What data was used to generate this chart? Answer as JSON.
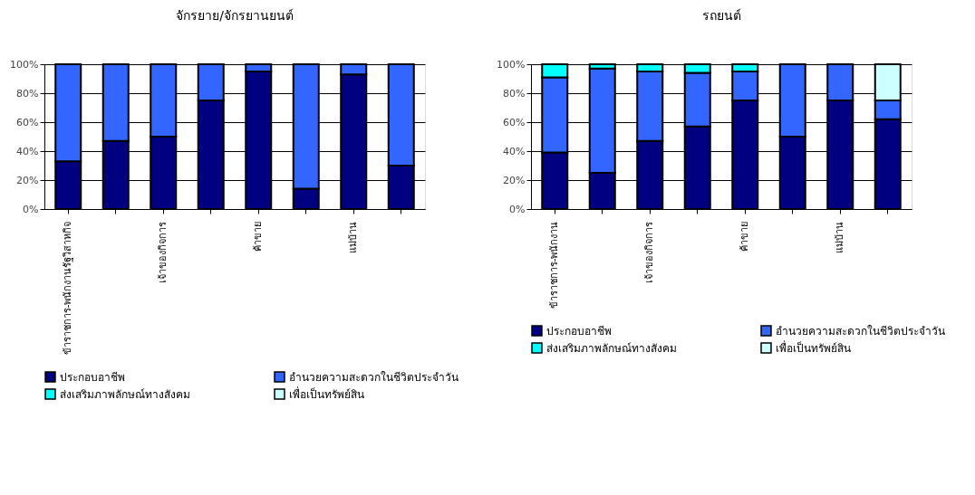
{
  "chart_data": [
    {
      "type": "bar",
      "title": "จักรยาย/จักรยานยนต์",
      "stacked": true,
      "grid": "y",
      "legend": "bottom",
      "categories": [
        "ข้าราชการ-พนักงานรัฐวิสาหกิจ",
        null,
        "เจ้าของกิจการ",
        null,
        "ค้าขาย",
        null,
        "แม่บ้าน",
        null
      ],
      "series": [
        {
          "name": "ประกอบอาชีพ",
          "color": "#000080",
          "values": [
            33,
            47,
            50,
            75,
            95,
            14,
            93,
            30
          ]
        },
        {
          "name": "อำนวยความสะดวกในชีวิตประจำวัน",
          "color": "#3366ff",
          "values": [
            67,
            53,
            50,
            25,
            5,
            86,
            7,
            70
          ]
        },
        {
          "name": "ส่งเสริมภาพลักษณ์ทางสังคม",
          "color": "#00ffff",
          "values": [
            0,
            0,
            0,
            0,
            0,
            0,
            0,
            0
          ]
        },
        {
          "name": "เพื่อเป็นทรัพย์สิน",
          "color": "#ccffff",
          "values": [
            0,
            0,
            0,
            0,
            0,
            0,
            0,
            0
          ]
        }
      ],
      "ylim": [
        0,
        100
      ],
      "yticks": [
        {
          "value": 0,
          "label": "0%"
        },
        {
          "value": 20,
          "label": "20%"
        },
        {
          "value": 40,
          "label": "40%"
        },
        {
          "value": 60,
          "label": "60%"
        },
        {
          "value": 80,
          "label": "80%"
        },
        {
          "value": 100,
          "label": "100%"
        }
      ]
    },
    {
      "type": "bar",
      "title": "รถยนต์",
      "stacked": true,
      "grid": "y",
      "legend": "bottom",
      "categories": [
        "ข้าราชการ-พนักงาน",
        null,
        "เจ้าของกิจการ",
        null,
        "ค้าขาย",
        null,
        "แม่บ้าน",
        null
      ],
      "series": [
        {
          "name": "ประกอบอาชีพ",
          "color": "#000080",
          "values": [
            39,
            25,
            47,
            57,
            75,
            50,
            75,
            62
          ]
        },
        {
          "name": "อำนวยความสะดวกในชีวิตประจำวัน",
          "color": "#3366ff",
          "values": [
            52,
            72,
            48,
            37,
            20,
            50,
            25,
            13
          ]
        },
        {
          "name": "ส่งเสริมภาพลักษณ์ทางสังคม",
          "color": "#00ffff",
          "values": [
            9,
            3,
            5,
            6,
            5,
            0,
            0,
            0
          ]
        },
        {
          "name": "เพื่อเป็นทรัพย์สิน",
          "color": "#ccffff",
          "values": [
            0,
            0,
            0,
            0,
            0,
            0,
            0,
            25
          ]
        }
      ],
      "ylim": [
        0,
        100
      ],
      "yticks": [
        {
          "value": 0,
          "label": "0%"
        },
        {
          "value": 20,
          "label": "20%"
        },
        {
          "value": 40,
          "label": "40%"
        },
        {
          "value": 60,
          "label": "60%"
        },
        {
          "value": 80,
          "label": "80%"
        },
        {
          "value": 100,
          "label": "100%"
        }
      ]
    }
  ]
}
